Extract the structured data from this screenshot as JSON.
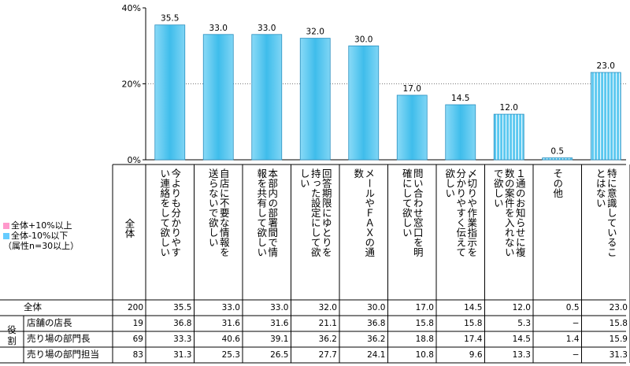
{
  "chart_data": {
    "type": "bar",
    "ylim": [
      0,
      40
    ],
    "yticks": [
      "0%",
      "20%",
      "40%"
    ],
    "categories": [
      "今よりも分かりやすい連絡をして欲しい",
      "自店に不要な情報を送らないで欲しい",
      "本部内の部署間で情報を共有して欲しい",
      "回答期限にゆとりを持った設定にして欲しい",
      "メールやＦＡＸの通数",
      "問い合わせ窓口を明確にして欲しい",
      "〆切りや作業指示を分かりやすく伝えて欲しい",
      "１通のお知らせに複数の案件を入れないで欲しい",
      "その他",
      "特に意識していることはない"
    ],
    "values": [
      35.5,
      33.0,
      33.0,
      32.0,
      30.0,
      17.0,
      14.5,
      12.0,
      0.5,
      23.0
    ],
    "value_labels": [
      "35.5",
      "33.0",
      "33.0",
      "32.0",
      "30.0",
      "17.0",
      "14.5",
      "12.0",
      "0.5",
      "23.0"
    ],
    "grid": "dotted line at 20%",
    "colors": {
      "bar": "#5BC8F0",
      "bar_light": "#B8E6F8",
      "pink": "#FF99CC",
      "blue": "#66CCFF"
    }
  },
  "legend": {
    "plus": "全体+10%以上",
    "minus": "全体-10%以下",
    "note": "（属性n=30以上）"
  },
  "table": {
    "n_header": "全体",
    "group_label": "役割",
    "headers": [
      "今よりも分かりやすい連絡をして欲しい",
      "自店に不要な情報を送らないで欲しい",
      "本部内の部署間で情報を共有して欲しい",
      "回答期限にゆとりを持った設定にして欲しい",
      "メールやＦＡＸの通数",
      "問い合わせ窓口を明確にして欲しい",
      "〆切りや作業指示を分かりやすく伝えて欲しい",
      "１通のお知らせに複数の案件を入れないで欲しい",
      "その他",
      "特に意識していることはない"
    ],
    "rows": [
      {
        "label": "全体",
        "n": "200",
        "values": [
          "35.5",
          "33.0",
          "33.0",
          "32.0",
          "30.0",
          "17.0",
          "14.5",
          "12.0",
          "0.5",
          "23.0"
        ]
      },
      {
        "label": "店舗の店長",
        "n": "19",
        "values": [
          "36.8",
          "31.6",
          "31.6",
          "21.1",
          "36.8",
          "15.8",
          "15.8",
          "5.3",
          "−",
          "15.8"
        ]
      },
      {
        "label": "売り場の部門長",
        "n": "69",
        "values": [
          "33.3",
          "40.6",
          "39.1",
          "36.2",
          "36.2",
          "18.8",
          "17.4",
          "14.5",
          "1.4",
          "15.9"
        ]
      },
      {
        "label": "売り場の部門担当",
        "n": "83",
        "values": [
          "31.3",
          "25.3",
          "26.5",
          "27.7",
          "24.1",
          "10.8",
          "9.6",
          "13.3",
          "−",
          "31.3"
        ]
      }
    ]
  }
}
